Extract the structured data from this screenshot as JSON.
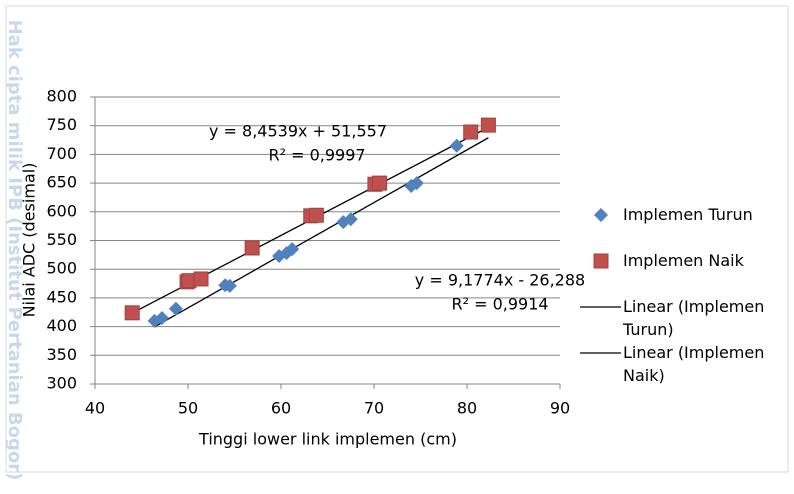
{
  "watermark": "Hak cipta milik IPB (Institut Pertanian Bogor)",
  "chart_data": {
    "type": "scatter",
    "x_label": "Tinggi lower link implemen (cm)",
    "y_label": "Nilai ADC (desimal)",
    "xlim": [
      40,
      90
    ],
    "xticks": [
      40,
      50,
      60,
      70,
      80,
      90
    ],
    "ylim": [
      300,
      800
    ],
    "yticks": [
      300,
      350,
      400,
      450,
      500,
      550,
      600,
      650,
      700,
      750,
      800
    ],
    "grid": true,
    "legend": "right",
    "series": [
      {
        "name": "Implemen Turun",
        "color": "#4f81bd",
        "marker": "diamond",
        "x": [
          46.4,
          47.2,
          48.7,
          54.0,
          54.5,
          59.8,
          60.6,
          61.2,
          66.7,
          67.5,
          74.0,
          74.6,
          78.9
        ],
        "values": [
          410,
          415,
          431,
          472,
          471,
          523,
          528,
          535,
          582,
          587,
          645,
          650,
          715
        ]
      },
      {
        "name": "Implemen Naik",
        "color": "#c0504d",
        "marker": "square",
        "x": [
          44.0,
          49.9,
          50.1,
          51.4,
          56.9,
          63.2,
          63.8,
          70.1,
          70.6,
          80.4,
          82.3
        ],
        "values": [
          424,
          478,
          480,
          483,
          537,
          593,
          594,
          648,
          650,
          739,
          751
        ]
      }
    ],
    "trendlines": [
      {
        "name": "Linear (Implemen Turun)",
        "series": 0,
        "color": "#000000",
        "slope": 9.1774,
        "intercept": -26.288,
        "equation": "y = 9,1774x - 26,288",
        "r2": "R² = 0,9914"
      },
      {
        "name": "Linear (Implemen Naik)",
        "series": 1,
        "color": "#000000",
        "slope": 8.4539,
        "intercept": 51.557,
        "equation": "y = 8,4539x + 51,557",
        "r2": "R² = 0,9997"
      }
    ]
  }
}
